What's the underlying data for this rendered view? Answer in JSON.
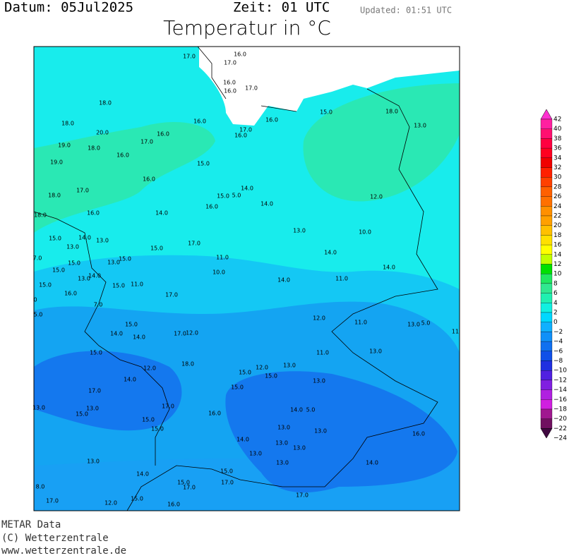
{
  "header": {
    "date": "Datum: 05Jul2025",
    "time": "Zeit: 01 UTC",
    "updated": "Updated: 01:51 UTC",
    "title": "Temperatur in °C"
  },
  "footer": [
    "METAR Data",
    "(C) Wetterzentrale",
    "www.wetterzentrale.de"
  ],
  "stations": [
    "17.0",
    "16.0",
    "17.0",
    "16.0",
    "16.0",
    "17.0",
    "18.0",
    "15.0",
    "18.0",
    "16.0",
    "16.0",
    "13.0",
    "18.0",
    "20.0",
    "16.0",
    "17.0",
    "16.0",
    "17.0",
    "19.0",
    "18.0",
    "16.0",
    "19.0",
    "15.0",
    "16.0",
    "17.0",
    "14.0",
    "15.0",
    "5.0",
    "18.0",
    "12.0",
    "14.0",
    "16.0",
    "18.0",
    "16.0",
    "14.0",
    "13.0",
    "10.0",
    "15.0",
    "14.0",
    "13.0",
    "13.0",
    "17.0",
    "15.0",
    "14.0",
    "11.0",
    "15.0",
    "13.0",
    "15.0",
    "15.0",
    "14.0",
    "10.0",
    "13.0",
    "14.0",
    "11.0",
    "14.0",
    "15.0",
    "15.0",
    "11.0",
    "16.0",
    "17.0",
    "7.0",
    "12.0",
    "11.0",
    "13.0",
    "5.0",
    "15.0",
    "14.0",
    "14.0",
    "17.0",
    "12.0",
    "11.0",
    "13.0",
    "15.0",
    "18.0",
    "12.0",
    "15.0",
    "12.0",
    "13.0",
    "15.0",
    "13.0",
    "14.0",
    "15.0",
    "17.0",
    "17.0",
    "14.0",
    "5.0",
    "13.0",
    "15.0",
    "16.0",
    "15.0",
    "15.0",
    "13.0",
    "13.0",
    "16.0",
    "14.0",
    "13.0",
    "13.0",
    "13.0",
    "13.0",
    "13.0",
    "14.0",
    "15.0",
    "14.0",
    "15.0",
    "17.0",
    "17.0",
    "17.0",
    "15.0",
    "17.0",
    "12.0",
    "16.0",
    "8.0",
    "13.0",
    "7.0",
    "0",
    "5.0",
    "11"
  ],
  "legend": {
    "labels": [
      "42",
      "40",
      "38",
      "36",
      "34",
      "32",
      "30",
      "28",
      "26",
      "24",
      "22",
      "20",
      "18",
      "16",
      "14",
      "12",
      "10",
      "8",
      "6",
      "4",
      "2",
      "0",
      "−2",
      "−4",
      "−6",
      "−8",
      "−10",
      "−12",
      "−14",
      "−16",
      "−18",
      "−20",
      "−22",
      "−24"
    ],
    "colors": [
      "#ff30d0",
      "#ff20a0",
      "#ff1070",
      "#ff0040",
      "#ff0020",
      "#f00000",
      "#ff2000",
      "#ff4000",
      "#ff6000",
      "#ff7000",
      "#ff9000",
      "#ffa000",
      "#ffc000",
      "#ffe000",
      "#ffff00",
      "#c0ff00",
      "#00e000",
      "#20e860",
      "#30e890",
      "#20f0b0",
      "#10f0e0",
      "#00d8ff",
      "#10b0ff",
      "#1090f8",
      "#1070f0",
      "#1050e8",
      "#2030e0",
      "#5020e0",
      "#8020e0",
      "#b020e0",
      "#d020e0",
      "#a01890",
      "#701060",
      "#400840"
    ]
  }
}
